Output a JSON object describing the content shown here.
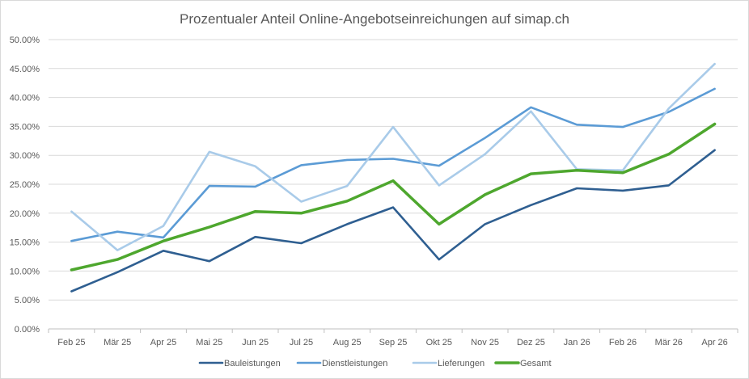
{
  "chart_data": {
    "type": "line",
    "title": "Prozentualer Anteil Online-Angebotseinreichungen auf simap.ch",
    "xlabel": "",
    "ylabel": "",
    "ylim": [
      0,
      50
    ],
    "yticks": [
      "0.00%",
      "5.00%",
      "10.00%",
      "15.00%",
      "20.00%",
      "25.00%",
      "30.00%",
      "35.00%",
      "40.00%",
      "45.00%",
      "50.00%"
    ],
    "categories": [
      "Feb 25",
      "Mär 25",
      "Apr 25",
      "Mai 25",
      "Jun 25",
      "Jul 25",
      "Aug 25",
      "Sep 25",
      "Okt 25",
      "Nov 25",
      "Dez 25",
      "Jan 26",
      "Feb 26",
      "Mär 26",
      "Apr 26"
    ],
    "grid": true,
    "legend_position": "bottom",
    "series": [
      {
        "name": "Bauleistungen",
        "color": "#2f5f91",
        "values": [
          6.5,
          9.8,
          13.5,
          11.7,
          15.9,
          14.8,
          18.1,
          21.0,
          12.0,
          18.1,
          21.4,
          24.3,
          23.9,
          24.8,
          30.9
        ]
      },
      {
        "name": "Dienstleistungen",
        "color": "#5b9bd5",
        "values": [
          15.2,
          16.8,
          15.8,
          24.7,
          24.6,
          28.3,
          29.2,
          29.4,
          28.2,
          33.0,
          38.3,
          35.3,
          34.9,
          37.5,
          41.5
        ]
      },
      {
        "name": "Lieferungen",
        "color": "#a9cbe9",
        "values": [
          20.3,
          13.6,
          17.8,
          30.6,
          28.1,
          22.0,
          24.7,
          34.9,
          24.8,
          30.2,
          37.6,
          27.6,
          27.4,
          38.1,
          45.8
        ]
      },
      {
        "name": "Gesamt",
        "color": "#4ea72e",
        "values": [
          10.2,
          12.0,
          15.2,
          17.6,
          20.3,
          20.0,
          22.1,
          25.6,
          18.1,
          23.2,
          26.8,
          27.4,
          27.0,
          30.2,
          35.4
        ]
      }
    ]
  }
}
